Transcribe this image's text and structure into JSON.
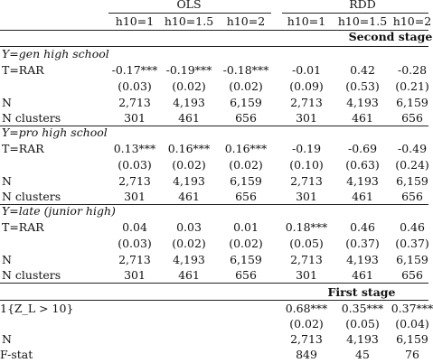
{
  "header": {
    "group_ols": "OLS",
    "group_rdd": "RDD",
    "columns": [
      "h10=1",
      "h10=1.5",
      "h10=2",
      "h10=1",
      "h10=1.5",
      "h10=2"
    ]
  },
  "second_stage_label": "Second stage",
  "panels": [
    {
      "title_prefix": "Y",
      "title_rest": "=gen high school",
      "treat_label": "T=RAR",
      "coef": [
        "-0.17***",
        "-0.19***",
        "-0.18***",
        "-0.01",
        "0.42",
        "-0.28"
      ],
      "se": [
        "(0.03)",
        "(0.02)",
        "(0.02)",
        "(0.09)",
        "(0.53)",
        "(0.21)"
      ],
      "n_label": "N",
      "n": [
        "2,713",
        "4,193",
        "6,159",
        "2,713",
        "4,193",
        "6,159"
      ],
      "clusters_label": "N clusters",
      "clusters": [
        "301",
        "461",
        "656",
        "301",
        "461",
        "656"
      ]
    },
    {
      "title_prefix": "Y",
      "title_rest": "=pro high school",
      "treat_label": "T=RAR",
      "coef": [
        "0.13***",
        "0.16***",
        "0.16***",
        "-0.19",
        "-0.69",
        "-0.49"
      ],
      "se": [
        "(0.03)",
        "(0.02)",
        "(0.02)",
        "(0.10)",
        "(0.63)",
        "(0.24)"
      ],
      "n_label": "N",
      "n": [
        "2,713",
        "4,193",
        "6,159",
        "2,713",
        "4,193",
        "6,159"
      ],
      "clusters_label": "N clusters",
      "clusters": [
        "301",
        "461",
        "656",
        "301",
        "461",
        "656"
      ]
    },
    {
      "title_prefix": "Y",
      "title_rest": "=late (junior high)",
      "treat_label": "T=RAR",
      "coef": [
        "0.04",
        "0.03",
        "0.01",
        "0.18***",
        "0.46",
        "0.46"
      ],
      "se": [
        "(0.03)",
        "(0.02)",
        "(0.02)",
        "(0.05)",
        "(0.37)",
        "(0.37)"
      ],
      "n_label": "N",
      "n": [
        "2,713",
        "4,193",
        "6,159",
        "2,713",
        "4,193",
        "6,159"
      ],
      "clusters_label": "N clusters",
      "clusters": [
        "301",
        "461",
        "656",
        "301",
        "461",
        "656"
      ]
    }
  ],
  "first_stage": {
    "label": "First stage",
    "instrument_label": "1{Z_L > 10}",
    "coef": [
      "0.68***",
      "0.35***",
      "0.37***"
    ],
    "se": [
      "(0.02)",
      "(0.05)",
      "(0.04)"
    ],
    "n_label": "N",
    "n": [
      "2,713",
      "4,193",
      "6,159"
    ],
    "fstat_label": "F-stat",
    "fstat": [
      "849",
      "45",
      "76"
    ]
  }
}
